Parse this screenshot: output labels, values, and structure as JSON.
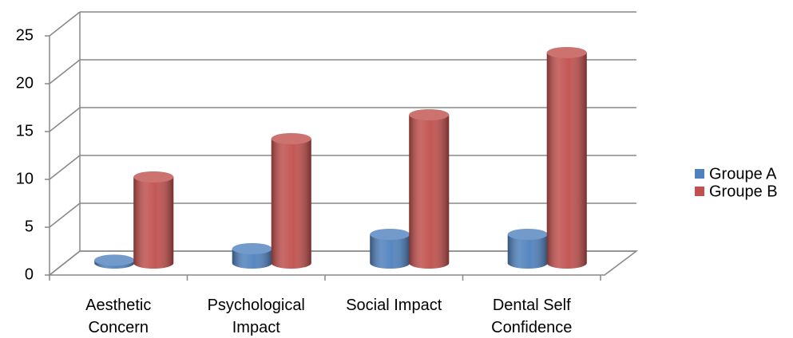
{
  "chart_data": {
    "type": "bar3d",
    "categories": [
      "Aesthetic Concern",
      "Psychological Impact",
      "Social Impact",
      "Dental Self Confidence"
    ],
    "series": [
      {
        "name": "Groupe A",
        "color": "#4f81bd",
        "values": [
          0.3,
          1.5,
          3,
          3
        ]
      },
      {
        "name": "Groupe B",
        "color": "#c0504d",
        "values": [
          9,
          13,
          15.5,
          22
        ]
      }
    ],
    "ylim": [
      0,
      25
    ],
    "yticks": [
      0,
      5,
      10,
      15,
      20,
      25
    ],
    "grid": true,
    "legend": "right"
  }
}
